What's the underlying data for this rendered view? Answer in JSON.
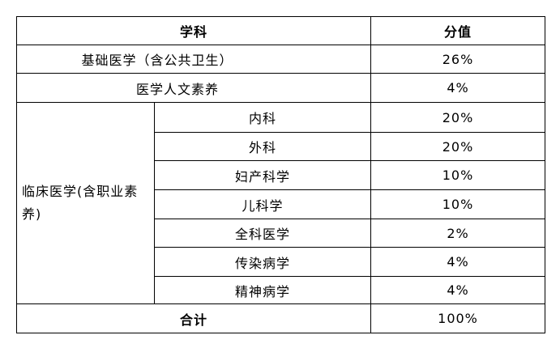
{
  "header": {
    "subject": "学科",
    "score": "分值"
  },
  "rows": [
    {
      "subject": "基础医学（含公共卫生）",
      "score": "26%"
    },
    {
      "subject": "医学人文素养",
      "score": "4%"
    }
  ],
  "clinical": {
    "group": "临床医学(含职业素养)",
    "items": [
      {
        "subject": "内科",
        "score": "20%"
      },
      {
        "subject": "外科",
        "score": "20%"
      },
      {
        "subject": "妇产科学",
        "score": "10%"
      },
      {
        "subject": "儿科学",
        "score": "10%"
      },
      {
        "subject": "全科医学",
        "score": "2%"
      },
      {
        "subject": "传染病学",
        "score": "4%"
      },
      {
        "subject": "精神病学",
        "score": "4%"
      }
    ]
  },
  "total": {
    "label": "合计",
    "score": "100%"
  }
}
